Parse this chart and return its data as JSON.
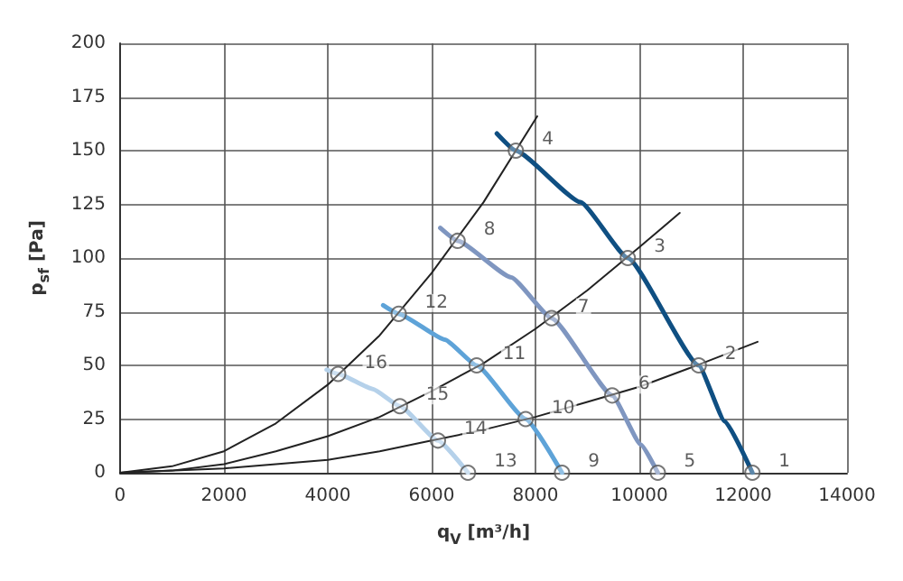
{
  "chart_data": {
    "type": "line",
    "xlabel": "q$_{V}$ [m³/h]",
    "ylabel": "p$_{sf}$ [Pa]",
    "xlim": [
      0,
      14000
    ],
    "xticks": [
      0,
      2000,
      4000,
      6000,
      8000,
      10000,
      12000,
      14000
    ],
    "ylim": [
      0,
      200
    ],
    "yticks": [
      0,
      25,
      50,
      75,
      100,
      125,
      150,
      175,
      200
    ],
    "grid": true,
    "line_style": "solid",
    "series": [
      {
        "color": "#0f4f82",
        "x": [
          7256,
          7622,
          8867,
          9778,
          11144,
          11644,
          12178
        ],
        "values": [
          158,
          150,
          126,
          100,
          50,
          24,
          0
        ]
      },
      {
        "color": "#7f96c0",
        "x": [
          6167,
          6500,
          7533,
          8311,
          9478,
          10033,
          10356
        ],
        "values": [
          114,
          108,
          91,
          72,
          36,
          13,
          0
        ]
      },
      {
        "color": "#5ea3d8",
        "x": [
          5067,
          5367,
          6256,
          6867,
          7811,
          8511
        ],
        "values": [
          78,
          74,
          62,
          50,
          25,
          0
        ]
      },
      {
        "color": "#b5d1ea",
        "x": [
          3978,
          4200,
          4867,
          5389,
          6122,
          6700
        ],
        "values": [
          48,
          46,
          39,
          31,
          15,
          0
        ]
      },
      {
        "color": "#222222",
        "x": [
          0,
          1000,
          2000,
          3000,
          4000,
          5000,
          6000,
          7000,
          8033
        ],
        "values": [
          0,
          3,
          10,
          23,
          41,
          64,
          93,
          126,
          166
        ]
      },
      {
        "color": "#222222",
        "x": [
          0,
          1000,
          2000,
          3000,
          4000,
          5000,
          6000,
          7000,
          8000,
          9000,
          10000,
          10778
        ],
        "values": [
          0,
          1,
          4,
          10,
          17,
          26,
          38,
          51,
          67,
          85,
          105,
          121
        ]
      },
      {
        "color": "#222222",
        "x": [
          0,
          2000,
          3000,
          4000,
          5000,
          6000,
          7000,
          8000,
          9000,
          10000,
          11000,
          12278
        ],
        "values": [
          0,
          2,
          4,
          6,
          10,
          15,
          20,
          26,
          33,
          40,
          49,
          61
        ]
      }
    ],
    "annotations": [
      {
        "text": "1",
        "x": 12178,
        "y": 0
      },
      {
        "text": "2",
        "x": 11144,
        "y": 50
      },
      {
        "text": "3",
        "x": 9778,
        "y": 100
      },
      {
        "text": "4",
        "x": 7622,
        "y": 150
      },
      {
        "text": "5",
        "x": 10356,
        "y": 0
      },
      {
        "text": "6",
        "x": 9478,
        "y": 36
      },
      {
        "text": "7",
        "x": 8311,
        "y": 72
      },
      {
        "text": "8",
        "x": 6500,
        "y": 108
      },
      {
        "text": "9",
        "x": 8511,
        "y": 0
      },
      {
        "text": "10",
        "x": 7811,
        "y": 25
      },
      {
        "text": "11",
        "x": 6867,
        "y": 50
      },
      {
        "text": "12",
        "x": 5367,
        "y": 74
      },
      {
        "text": "13",
        "x": 6700,
        "y": 0
      },
      {
        "text": "14",
        "x": 6122,
        "y": 15
      },
      {
        "text": "15",
        "x": 5389,
        "y": 31
      },
      {
        "text": "16",
        "x": 4200,
        "y": 46
      }
    ]
  }
}
